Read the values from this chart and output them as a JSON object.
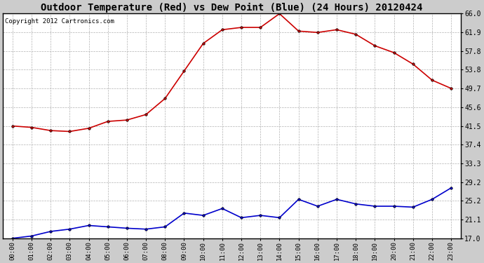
{
  "title": "Outdoor Temperature (Red) vs Dew Point (Blue) (24 Hours) 20120424",
  "copyright": "Copyright 2012 Cartronics.com",
  "x_labels": [
    "00:00",
    "01:00",
    "02:00",
    "03:00",
    "04:00",
    "05:00",
    "06:00",
    "07:00",
    "08:00",
    "09:00",
    "10:00",
    "11:00",
    "12:00",
    "13:00",
    "14:00",
    "15:00",
    "16:00",
    "17:00",
    "18:00",
    "19:00",
    "20:00",
    "21:00",
    "22:00",
    "23:00"
  ],
  "temp_red": [
    41.5,
    41.2,
    40.5,
    40.3,
    41.0,
    42.5,
    42.8,
    44.0,
    47.5,
    53.5,
    59.5,
    62.5,
    63.0,
    63.0,
    66.0,
    62.2,
    61.9,
    62.5,
    61.5,
    59.0,
    57.5,
    55.0,
    51.5,
    49.7
  ],
  "dew_blue": [
    17.0,
    17.5,
    18.5,
    19.0,
    19.8,
    19.5,
    19.2,
    19.0,
    19.5,
    22.5,
    22.0,
    23.5,
    21.5,
    22.0,
    21.5,
    25.5,
    24.0,
    25.5,
    24.5,
    24.0,
    24.0,
    23.8,
    25.5,
    28.0
  ],
  "ylim_min": 17.0,
  "ylim_max": 66.0,
  "yticks": [
    17.0,
    21.1,
    25.2,
    29.2,
    33.3,
    37.4,
    41.5,
    45.6,
    49.7,
    53.8,
    57.8,
    61.9,
    66.0
  ],
  "red_color": "#cc0000",
  "blue_color": "#0000cc",
  "plot_bg_color": "#ffffff",
  "fig_bg_color": "#cccccc",
  "grid_color": "#aaaaaa",
  "title_fontsize": 10,
  "copyright_fontsize": 6.5
}
